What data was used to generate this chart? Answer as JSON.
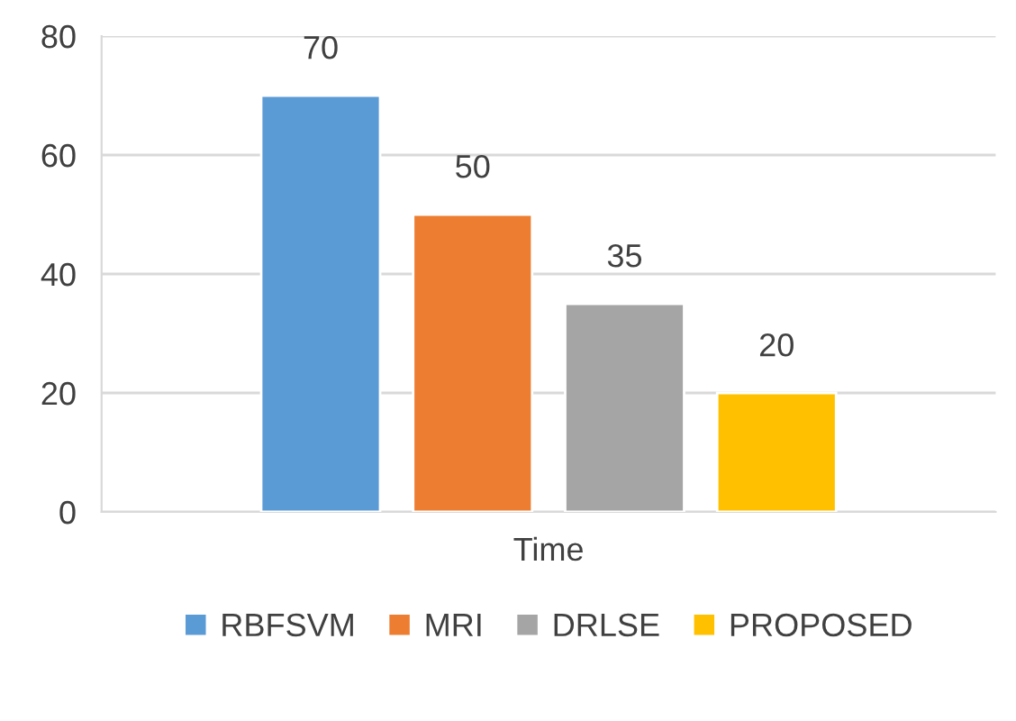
{
  "chart_data": {
    "type": "bar",
    "categories": [
      "Time"
    ],
    "series": [
      {
        "name": "RBFSVM",
        "color": "#5b9bd5",
        "values": [
          70
        ]
      },
      {
        "name": "MRI",
        "color": "#ed7d31",
        "values": [
          50
        ]
      },
      {
        "name": "DRLSE",
        "color": "#a5a5a5",
        "values": [
          35
        ]
      },
      {
        "name": "PROPOSED",
        "color": "#ffc000",
        "values": [
          20
        ]
      }
    ],
    "ylim": [
      0,
      80
    ],
    "yticks": [
      0,
      20,
      40,
      60,
      80
    ],
    "grid": "y",
    "legend": "bottom",
    "data_labels": true
  }
}
